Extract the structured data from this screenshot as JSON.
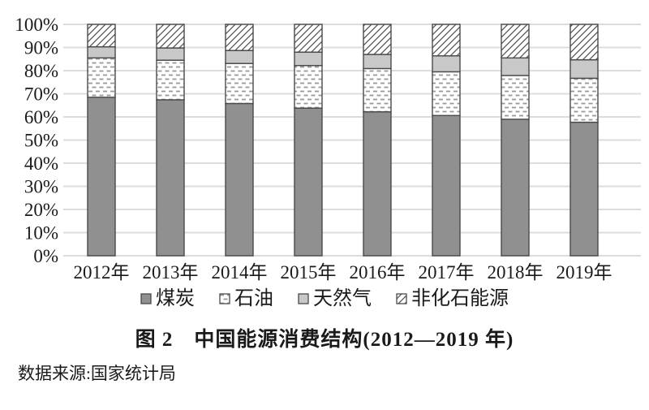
{
  "title": "图 2　中国能源消费结构(2012—2019 年)",
  "source": "数据来源:国家统计局",
  "colors": {
    "coal_fill": "#909090",
    "gas_fill": "#c8c8c8",
    "segment_border": "#4a4a4a",
    "gridline": "#dcdcdc",
    "pattern_dash": "#999999",
    "pattern_hatch_line": "#555555",
    "text": "#1a1a1a",
    "background": "#ffffff"
  },
  "chart_data": {
    "type": "bar",
    "stacked": true,
    "orientation": "vertical",
    "categories": [
      "2012年",
      "2013年",
      "2014年",
      "2015年",
      "2016年",
      "2017年",
      "2018年",
      "2019年"
    ],
    "series": [
      {
        "key": "coal",
        "name": "煤炭",
        "fill": "color:coal_fill",
        "pattern": "solid-dark-gray",
        "values": [
          68.5,
          67.4,
          65.8,
          63.8,
          62.2,
          60.6,
          59.0,
          57.7
        ]
      },
      {
        "key": "oil",
        "name": "石油",
        "fill": "pattern:oil",
        "pattern": "dashed-dot-rows",
        "values": [
          17.0,
          17.1,
          17.3,
          18.4,
          18.7,
          18.9,
          18.9,
          19.0
        ]
      },
      {
        "key": "gas",
        "name": "天然气",
        "fill": "color:gas_fill",
        "pattern": "solid-light-gray",
        "values": [
          4.8,
          5.3,
          5.6,
          5.8,
          6.1,
          6.9,
          7.6,
          8.0
        ]
      },
      {
        "key": "nonfossil",
        "name": "非化石能源",
        "fill": "pattern:hatch",
        "pattern": "diagonal-hatch",
        "values": [
          9.7,
          10.2,
          11.3,
          12.0,
          13.0,
          13.6,
          14.5,
          15.3
        ]
      }
    ],
    "ylabel": "",
    "xlabel": "",
    "ylim": [
      0,
      100
    ],
    "y_tick_step": 10,
    "y_tick_suffix": "%",
    "y_ticks": [
      "100%",
      "90%",
      "80%",
      "70%",
      "60%",
      "50%",
      "40%",
      "30%",
      "20%",
      "10%",
      "0%"
    ],
    "grid": "horizontal",
    "legend_position": "bottom"
  }
}
